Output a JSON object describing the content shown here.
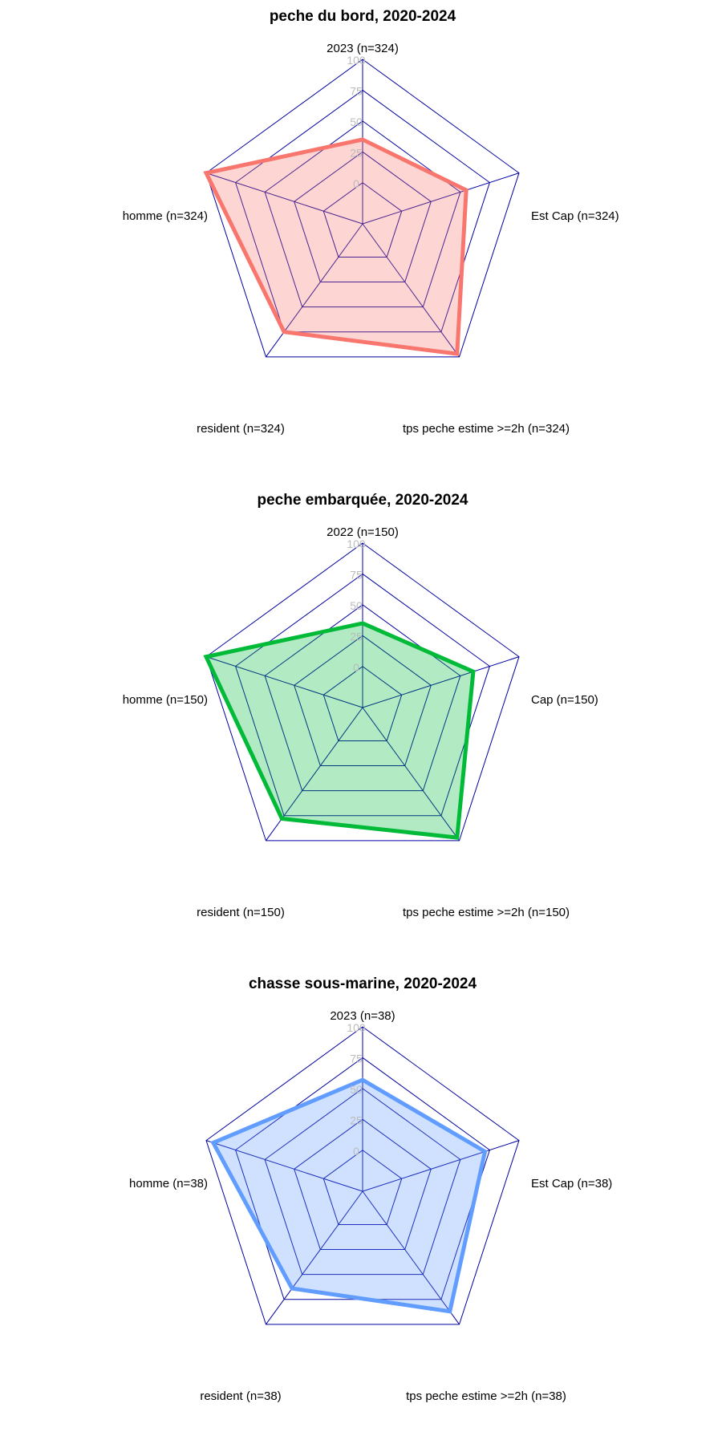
{
  "chart_data": [
    {
      "type": "radar",
      "title": "peche du bord, 2020-2024",
      "axis_labels": [
        "2023 (n=324)",
        "Est Cap (n=324)",
        "tps peche estime >=2h (n=324)",
        "resident (n=324)",
        "homme (n=324)"
      ],
      "values": [
        35,
        55,
        97,
        75,
        100
      ],
      "rlim": [
        0,
        100
      ],
      "ticks": [
        "0",
        "25",
        "50",
        "75",
        "100"
      ],
      "line_color": "#F8766D",
      "fill_color": "#F8766D"
    },
    {
      "type": "radar",
      "title": "peche embarquée, 2020-2024",
      "axis_labels": [
        "2022 (n=150)",
        "Cap (n=150)",
        "tps peche estime >=2h (n=150)",
        "resident (n=150)",
        "homme (n=150)"
      ],
      "values": [
        35,
        61,
        97,
        78,
        100
      ],
      "rlim": [
        0,
        100
      ],
      "ticks": [
        "0",
        "25",
        "50",
        "75",
        "100"
      ],
      "line_color": "#00BA38",
      "fill_color": "#00BA38"
    },
    {
      "type": "radar",
      "title": "chasse sous-marine, 2020-2024",
      "axis_labels": [
        "2023 (n=38)",
        "Est Cap (n=38)",
        "tps peche estime >=2h (n=38)",
        "resident (n=38)",
        "homme (n=38)"
      ],
      "values": [
        57,
        71,
        87,
        64,
        94
      ],
      "rlim": [
        0,
        100
      ],
      "ticks": [
        "0",
        "25",
        "50",
        "75",
        "100"
      ],
      "line_color": "#619CFF",
      "fill_color": "#619CFF"
    }
  ]
}
